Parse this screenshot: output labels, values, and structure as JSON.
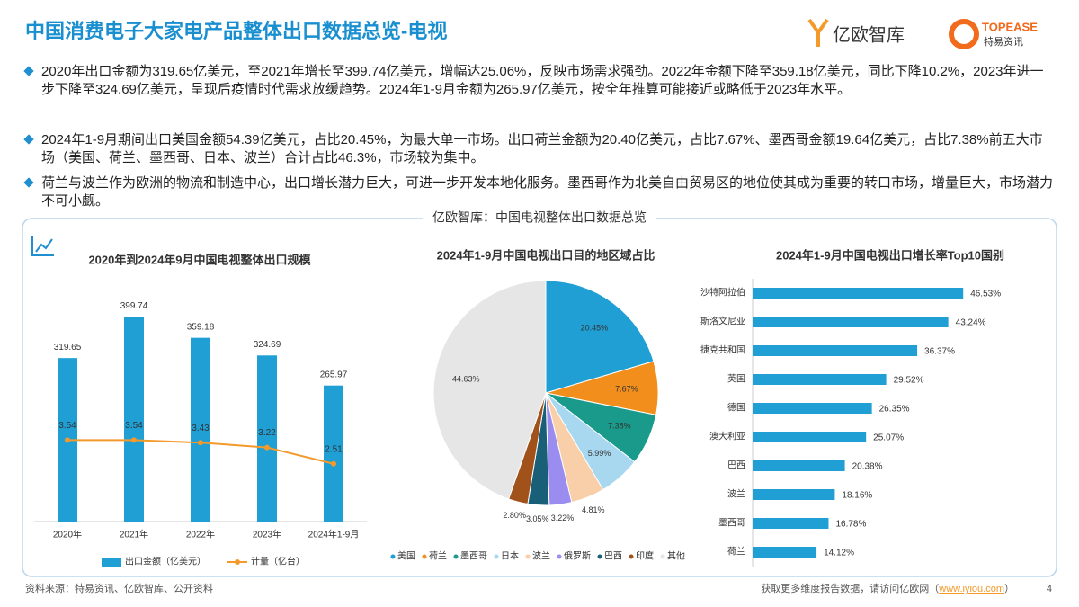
{
  "title": "中国消费电子大家电产品整体出口数据总览-电视",
  "logos": [
    "亿欧智库",
    "TOPEASE",
    "特易资讯"
  ],
  "bullets": [
    "2020年出口金额为319.65亿美元，至2021年增长至399.74亿美元，增幅达25.06%，反映市场需求强劲。2022年金额下降至359.18亿美元，同比下降10.2%，2023年进一步下降至324.69亿美元，呈现后疫情时代需求放缓趋势。2024年1-9月金额为265.97亿美元，按全年推算可能接近或略低于2023年水平。",
    "2024年1-9月期间出口美国金额54.39亿美元，占比20.45%，为最大单一市场。出口荷兰金额为20.40亿美元，占比7.67%、墨西哥金额19.64亿美元，占比7.38%前五大市场（美国、荷兰、墨西哥、日本、波兰）合计占比46.3%，市场较为集中。",
    "荷兰与波兰作为欧洲的物流和制造中心，出口增长潜力巨大，可进一步开发本地化服务。墨西哥作为北美自由贸易区的地位使其成为重要的转口市场，增量巨大，市场潜力不可小觑。"
  ],
  "panel_title": "亿欧智库：中国电视整体出口数据总览",
  "chart_data": [
    {
      "type": "bar",
      "title": "2020年到2024年9月中国电视整体出口规模",
      "categories": [
        "2020年",
        "2021年",
        "2022年",
        "2023年",
        "2024年1-9月"
      ],
      "series": [
        {
          "name": "出口金额（亿美元）",
          "color": "#1f9fd4",
          "values": [
            319.65,
            399.74,
            359.18,
            324.69,
            265.97
          ]
        },
        {
          "name": "计量（亿台）",
          "type": "line",
          "axis": "y2",
          "color": "#f39a2b",
          "values": [
            3.54,
            3.54,
            3.43,
            3.22,
            2.51
          ]
        }
      ],
      "ylim": [
        0,
        450
      ],
      "y2lim": [
        0,
        10
      ]
    },
    {
      "type": "pie",
      "title": "2024年1-9月中国电视出口目的地区域占比",
      "categories": [
        "美国",
        "荷兰",
        "墨西哥",
        "日本",
        "波兰",
        "俄罗斯",
        "巴西",
        "印度",
        "其他"
      ],
      "values": [
        20.45,
        7.67,
        7.38,
        5.99,
        4.81,
        3.22,
        3.05,
        2.8,
        44.63
      ],
      "value_labels": [
        "20.45%",
        "7.67%",
        "7.38%",
        "5.99%",
        "4.81%",
        "3.22%",
        "3.05%",
        "2.80%",
        "44.63%"
      ],
      "colors": [
        "#1f9fd4",
        "#f28e1c",
        "#1a9a8a",
        "#a8d8f0",
        "#f8cfa8",
        "#9b8cf0",
        "#1a5f78",
        "#a0521a",
        "#e6e6e6"
      ]
    },
    {
      "type": "bar",
      "orientation": "horizontal",
      "title": "2024年1-9月中国电视出口增长率Top10国别",
      "categories": [
        "沙特阿拉伯",
        "斯洛文尼亚",
        "捷克共和国",
        "英国",
        "德国",
        "澳大利亚",
        "巴西",
        "波兰",
        "墨西哥",
        "荷兰"
      ],
      "values": [
        46.53,
        43.24,
        36.37,
        29.52,
        26.35,
        25.07,
        20.38,
        18.16,
        16.78,
        14.12
      ],
      "value_labels": [
        "46.53%",
        "43.24%",
        "36.37%",
        "29.52%",
        "26.35%",
        "25.07%",
        "20.38%",
        "18.16%",
        "16.78%",
        "14.12%"
      ],
      "color": "#1f9fd4",
      "xlim": [
        0,
        60
      ]
    }
  ],
  "footer": {
    "source": "资料来源：特易资讯、亿欧智库、公开资料",
    "note": "获取更多维度报告数据，请访问亿欧网（",
    "link": "www.iyiou.com",
    "note_end": "）",
    "page": "4"
  }
}
